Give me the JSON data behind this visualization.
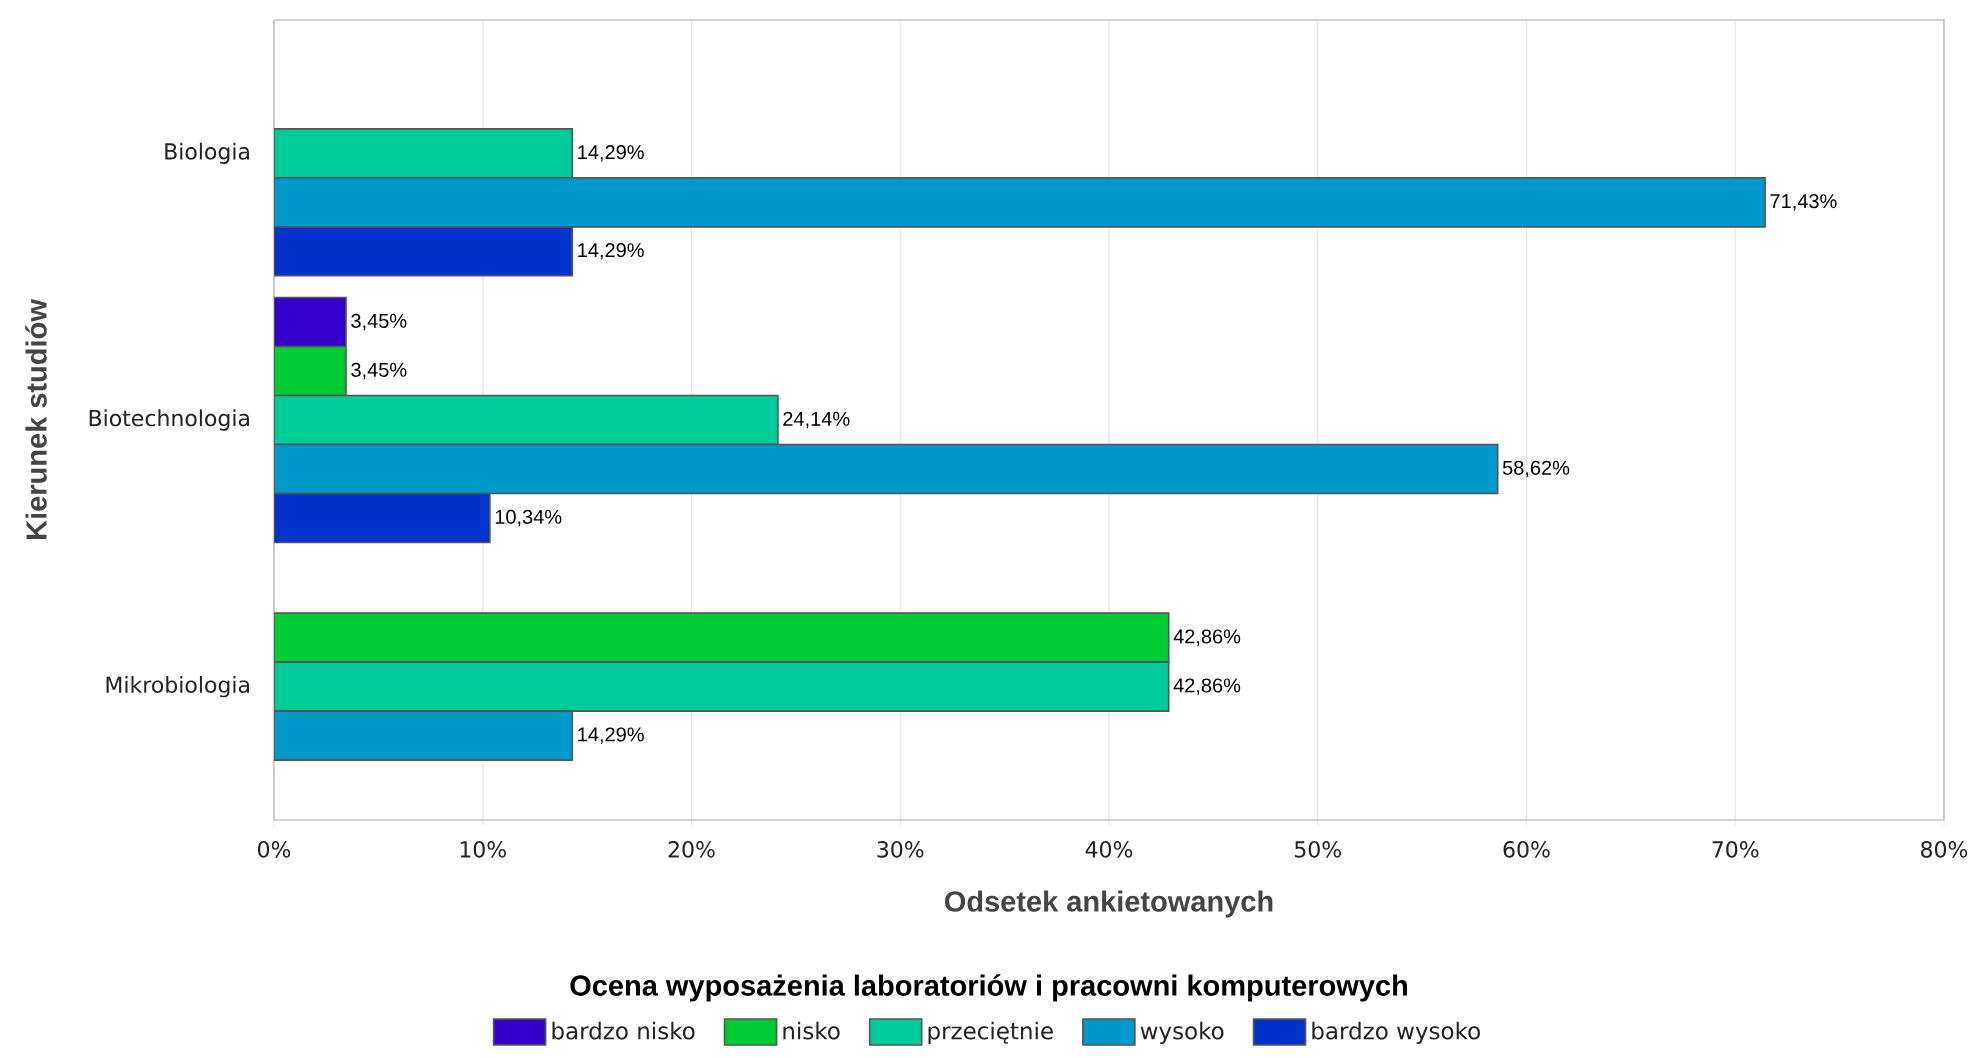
{
  "chart_data": {
    "type": "bar",
    "orientation": "horizontal",
    "xlabel": "Odsetek ankietowanych",
    "ylabel": "Kierunek studiów",
    "legend_title": "Ocena wyposażenia laboratoriów i pracowni komputerowych",
    "categories": [
      "Biologia",
      "Biotechnologia",
      "Mikrobiologia"
    ],
    "series": [
      {
        "name": "bardzo nisko",
        "color": "#3300cc",
        "values": [
          null,
          3.45,
          null
        ],
        "value_labels": [
          null,
          "3,45%",
          null
        ]
      },
      {
        "name": "nisko",
        "color": "#00cc33",
        "values": [
          null,
          3.45,
          42.86
        ],
        "value_labels": [
          null,
          "3,45%",
          "42,86%"
        ]
      },
      {
        "name": "przeciętnie",
        "color": "#00cc99",
        "values": [
          14.29,
          24.14,
          42.86
        ],
        "value_labels": [
          "14,29%",
          "24,14%",
          "42,86%"
        ]
      },
      {
        "name": "wysoko",
        "color": "#0099cc",
        "values": [
          71.43,
          58.62,
          14.29
        ],
        "value_labels": [
          "71,43%",
          "58,62%",
          "14,29%"
        ]
      },
      {
        "name": "bardzo wysoko",
        "color": "#0033cc",
        "values": [
          14.29,
          10.34,
          null
        ],
        "value_labels": [
          "14,29%",
          "10,34%",
          null
        ]
      }
    ],
    "xlim": [
      0,
      80
    ],
    "xticks": [
      {
        "value": 0,
        "label": "0%"
      },
      {
        "value": 10,
        "label": "10%"
      },
      {
        "value": 20,
        "label": "20%"
      },
      {
        "value": 30,
        "label": "30%"
      },
      {
        "value": 40,
        "label": "40%"
      },
      {
        "value": 50,
        "label": "50%"
      },
      {
        "value": 60,
        "label": "60%"
      },
      {
        "value": 70,
        "label": "70%"
      },
      {
        "value": 80,
        "label": "80%"
      }
    ],
    "grid": "x",
    "legend": "bottom"
  }
}
